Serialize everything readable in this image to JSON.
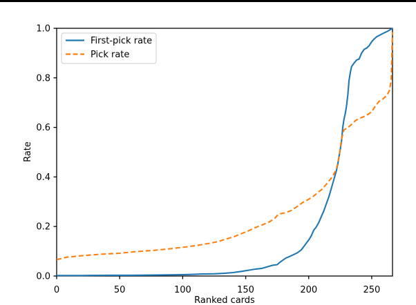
{
  "page": {
    "background": "#ffffff",
    "top_rule_color": "#000000"
  },
  "chart_data": {
    "type": "line",
    "title": "",
    "xlabel": "Ranked cards",
    "ylabel": "Rate",
    "xlim": [
      0,
      266.5
    ],
    "ylim": [
      0,
      1.0
    ],
    "x_ticks": [
      0,
      50,
      100,
      150,
      200,
      250
    ],
    "y_ticks": [
      0.0,
      0.2,
      0.4,
      0.6,
      0.8,
      1.0
    ],
    "grid": false,
    "legend_position": "upper left",
    "spine_color": "#000000",
    "series": [
      {
        "name": "First-pick rate",
        "color": "#1f77b4",
        "style": "solid",
        "points": [
          [
            0,
            0.002
          ],
          [
            20,
            0.002
          ],
          [
            40,
            0.003
          ],
          [
            60,
            0.003
          ],
          [
            80,
            0.004
          ],
          [
            95,
            0.005
          ],
          [
            105,
            0.006
          ],
          [
            115,
            0.008
          ],
          [
            125,
            0.009
          ],
          [
            133,
            0.011
          ],
          [
            140,
            0.014
          ],
          [
            147,
            0.019
          ],
          [
            153,
            0.024
          ],
          [
            158,
            0.028
          ],
          [
            163,
            0.031
          ],
          [
            167,
            0.037
          ],
          [
            171,
            0.043
          ],
          [
            175,
            0.046
          ],
          [
            177,
            0.055
          ],
          [
            179,
            0.062
          ],
          [
            182,
            0.073
          ],
          [
            185,
            0.079
          ],
          [
            188,
            0.086
          ],
          [
            191,
            0.094
          ],
          [
            194,
            0.105
          ],
          [
            196,
            0.118
          ],
          [
            198,
            0.132
          ],
          [
            200,
            0.145
          ],
          [
            202,
            0.162
          ],
          [
            204,
            0.185
          ],
          [
            206,
            0.198
          ],
          [
            208,
            0.216
          ],
          [
            210,
            0.24
          ],
          [
            212,
            0.263
          ],
          [
            214,
            0.292
          ],
          [
            216,
            0.32
          ],
          [
            218,
            0.355
          ],
          [
            220,
            0.39
          ],
          [
            222,
            0.425
          ],
          [
            223,
            0.45
          ],
          [
            224,
            0.48
          ],
          [
            225,
            0.51
          ],
          [
            226,
            0.54
          ],
          [
            227,
            0.6
          ],
          [
            228,
            0.633
          ],
          [
            229,
            0.655
          ],
          [
            230,
            0.685
          ],
          [
            231,
            0.73
          ],
          [
            232,
            0.79
          ],
          [
            233,
            0.82
          ],
          [
            234,
            0.845
          ],
          [
            236,
            0.86
          ],
          [
            238,
            0.872
          ],
          [
            240,
            0.876
          ],
          [
            242,
            0.9
          ],
          [
            244,
            0.915
          ],
          [
            246,
            0.92
          ],
          [
            248,
            0.93
          ],
          [
            250,
            0.946
          ],
          [
            252,
            0.957
          ],
          [
            254,
            0.966
          ],
          [
            257,
            0.974
          ],
          [
            260,
            0.982
          ],
          [
            263,
            0.989
          ],
          [
            266.5,
            1.0
          ]
        ]
      },
      {
        "name": "Pick rate",
        "color": "#ff7f0e",
        "style": "dashed",
        "points": [
          [
            0,
            0.066
          ],
          [
            8,
            0.076
          ],
          [
            20,
            0.082
          ],
          [
            35,
            0.088
          ],
          [
            50,
            0.092
          ],
          [
            62,
            0.098
          ],
          [
            78,
            0.104
          ],
          [
            90,
            0.11
          ],
          [
            100,
            0.116
          ],
          [
            111,
            0.123
          ],
          [
            120,
            0.131
          ],
          [
            128,
            0.139
          ],
          [
            135,
            0.15
          ],
          [
            141,
            0.159
          ],
          [
            145,
            0.168
          ],
          [
            152,
            0.182
          ],
          [
            158,
            0.196
          ],
          [
            163,
            0.206
          ],
          [
            169,
            0.219
          ],
          [
            173,
            0.233
          ],
          [
            176,
            0.25
          ],
          [
            181,
            0.255
          ],
          [
            186,
            0.264
          ],
          [
            191,
            0.281
          ],
          [
            195,
            0.296
          ],
          [
            199,
            0.307
          ],
          [
            203,
            0.319
          ],
          [
            207,
            0.336
          ],
          [
            211,
            0.352
          ],
          [
            215,
            0.377
          ],
          [
            219,
            0.402
          ],
          [
            222,
            0.432
          ],
          [
            224,
            0.478
          ],
          [
            225,
            0.515
          ],
          [
            226,
            0.55
          ],
          [
            227,
            0.572
          ],
          [
            228,
            0.59
          ],
          [
            231,
            0.599
          ],
          [
            234,
            0.612
          ],
          [
            237,
            0.627
          ],
          [
            240,
            0.636
          ],
          [
            244,
            0.644
          ],
          [
            247,
            0.652
          ],
          [
            250,
            0.663
          ],
          [
            253,
            0.687
          ],
          [
            256,
            0.706
          ],
          [
            259,
            0.715
          ],
          [
            262,
            0.729
          ],
          [
            264,
            0.748
          ],
          [
            265.5,
            0.79
          ],
          [
            266,
            0.9
          ],
          [
            266.5,
            0.985
          ]
        ]
      }
    ]
  }
}
